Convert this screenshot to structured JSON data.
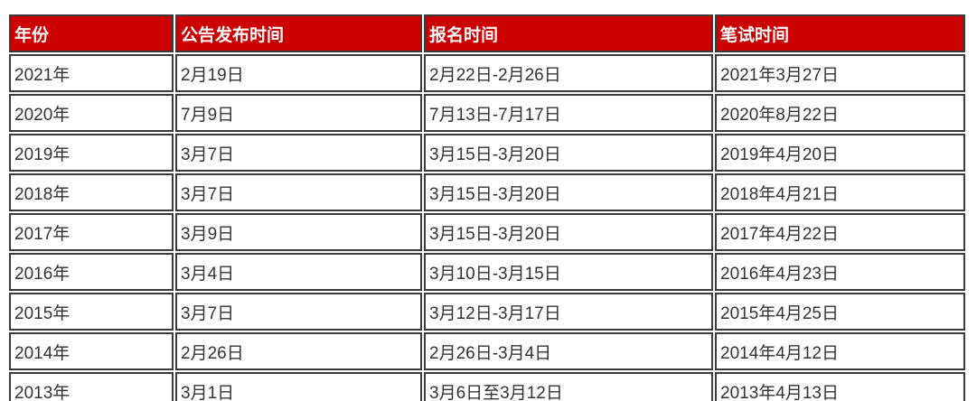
{
  "colors": {
    "header_bg": "#cc0000",
    "header_text": "#ffffff",
    "border": "#3b3b3b",
    "cell_text": "#333333",
    "cell_bg": "#ffffff"
  },
  "table": {
    "columns": [
      {
        "label": "年份"
      },
      {
        "label": "公告发布时间"
      },
      {
        "label": "报名时间"
      },
      {
        "label": "笔试时间"
      }
    ],
    "rows": [
      [
        "2021年",
        "2月19日",
        "2月22日-2月26日",
        "2021年3月27日"
      ],
      [
        "2020年",
        "7月9日",
        "7月13日-7月17日",
        "2020年8月22日"
      ],
      [
        "2019年",
        "3月7日",
        "3月15日-3月20日",
        "2019年4月20日"
      ],
      [
        "2018年",
        "3月7日",
        "3月15日-3月20日",
        "2018年4月21日"
      ],
      [
        "2017年",
        "3月9日",
        "3月15日-3月20日",
        "2017年4月22日"
      ],
      [
        "2016年",
        "3月4日",
        "3月10日-3月15日",
        "2016年4月23日"
      ],
      [
        "2015年",
        "3月7日",
        "3月12日-3月17日",
        "2015年4月25日"
      ],
      [
        "2014年",
        "2月26日",
        "2月26日-3月4日",
        "2014年4月12日"
      ],
      [
        "2013年",
        "3月1日",
        "3月6日至3月12日",
        "2013年4月13日"
      ]
    ]
  }
}
